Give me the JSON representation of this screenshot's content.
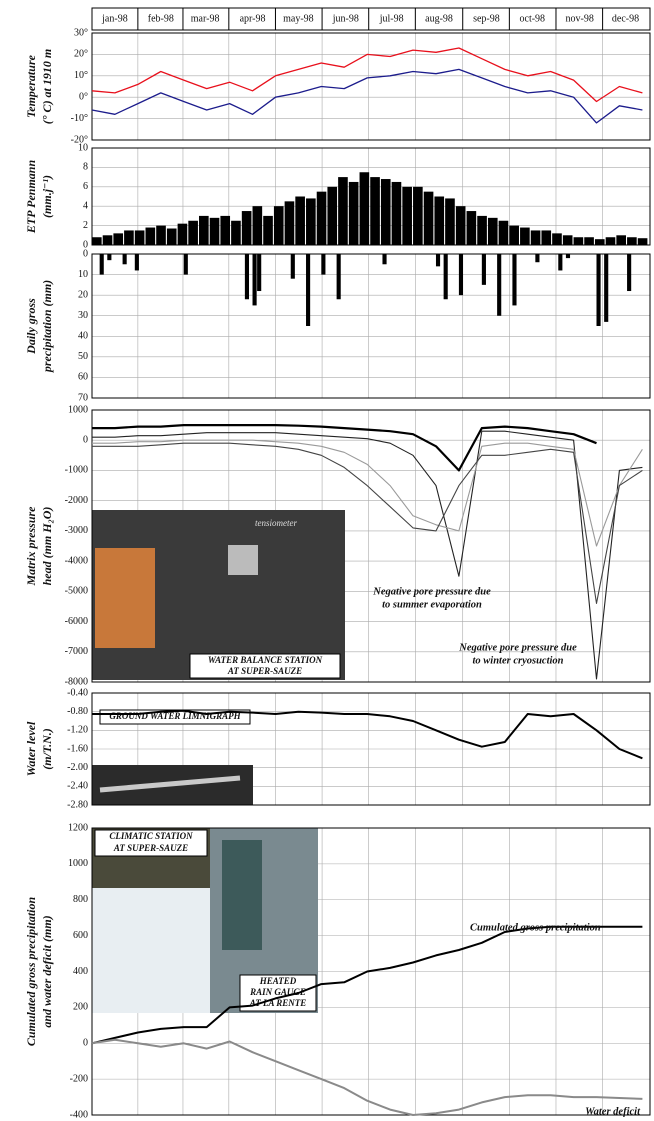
{
  "chart_data": [
    {
      "type": "line",
      "ylabel": [
        "Temperature",
        "(° C) at 1910 m"
      ],
      "xlim": [
        0,
        365
      ],
      "xticks": [
        {
          "value": 15,
          "label": "jan-98"
        },
        {
          "value": 45,
          "label": "feb-98"
        },
        {
          "value": 74,
          "label": "mar-98"
        },
        {
          "value": 105,
          "label": "apr-98"
        },
        {
          "value": 135,
          "label": "may-98"
        },
        {
          "value": 166,
          "label": "jun-98"
        },
        {
          "value": 196,
          "label": "jul-98"
        },
        {
          "value": 227,
          "label": "aug-98"
        },
        {
          "value": 258,
          "label": "sep-98"
        },
        {
          "value": 288,
          "label": "oct-98"
        },
        {
          "value": 319,
          "label": "nov-98"
        },
        {
          "value": 349,
          "label": "dec-98"
        }
      ],
      "ylim": [
        -20,
        30
      ],
      "yticks": [
        {
          "value": -20,
          "label": "-20°"
        },
        {
          "value": -10,
          "label": "-10°"
        },
        {
          "value": 0,
          "label": "0°"
        },
        {
          "value": 10,
          "label": "10°"
        },
        {
          "value": 20,
          "label": "20°"
        },
        {
          "value": 30,
          "label": "30°"
        }
      ],
      "grid": true,
      "x": [
        0,
        15,
        30,
        45,
        60,
        75,
        90,
        105,
        120,
        135,
        150,
        165,
        180,
        195,
        210,
        225,
        240,
        255,
        270,
        285,
        300,
        315,
        330,
        345,
        360
      ],
      "series": [
        {
          "color": "#e8101c",
          "values": [
            3,
            2,
            6,
            12,
            8,
            4,
            7,
            3,
            10,
            13,
            16,
            14,
            20,
            19,
            22,
            21,
            23,
            18,
            13,
            10,
            12,
            8,
            -2,
            5,
            2
          ]
        },
        {
          "color": "#1c1c8c",
          "values": [
            -6,
            -8,
            -3,
            2,
            -2,
            -6,
            -3,
            -8,
            0,
            2,
            5,
            4,
            9,
            10,
            12,
            11,
            13,
            9,
            5,
            2,
            3,
            0,
            -12,
            -4,
            -6
          ]
        }
      ]
    },
    {
      "type": "bar",
      "ylabel": [
        "ETP Penmann",
        "(mm.j⁻¹)"
      ],
      "xlim": [
        0,
        365
      ],
      "ylim": [
        0,
        10
      ],
      "yticks": [
        0,
        2,
        4,
        6,
        8,
        10
      ],
      "grid": true,
      "color": "#000000",
      "x": [
        0,
        7,
        14,
        21,
        28,
        35,
        42,
        49,
        56,
        63,
        70,
        77,
        84,
        91,
        98,
        105,
        112,
        119,
        126,
        133,
        140,
        147,
        154,
        161,
        168,
        175,
        182,
        189,
        196,
        203,
        210,
        217,
        224,
        231,
        238,
        245,
        252,
        259,
        266,
        273,
        280,
        287,
        294,
        301,
        308,
        315,
        322,
        329,
        336,
        343,
        350,
        357
      ],
      "values": [
        0.8,
        1,
        1.2,
        1.5,
        1.5,
        1.8,
        2,
        1.7,
        2.2,
        2.5,
        3,
        2.8,
        3,
        2.5,
        3.5,
        4,
        3,
        4,
        4.5,
        5,
        4.8,
        5.5,
        6,
        7,
        6.5,
        7.5,
        7,
        6.8,
        6.5,
        6,
        6,
        5.5,
        5,
        4.8,
        4,
        3.5,
        3,
        2.8,
        2.5,
        2,
        1.8,
        1.5,
        1.5,
        1.2,
        1,
        0.8,
        0.8,
        0.6,
        0.8,
        1,
        0.8,
        0.7
      ]
    },
    {
      "type": "bar",
      "ylabel": [
        "Daily gross",
        "precipitation (mm)"
      ],
      "xlim": [
        0,
        365
      ],
      "ylim": [
        0,
        70
      ],
      "y_inverted": true,
      "yticks": [
        0,
        10,
        20,
        30,
        40,
        50,
        60,
        70
      ],
      "grid": true,
      "color": "#000000",
      "x": [
        5,
        10,
        20,
        28,
        60,
        100,
        105,
        108,
        130,
        140,
        150,
        160,
        190,
        225,
        230,
        240,
        255,
        265,
        275,
        290,
        305,
        310,
        330,
        335,
        350
      ],
      "values": [
        10,
        3,
        5,
        8,
        10,
        22,
        25,
        18,
        12,
        35,
        10,
        22,
        5,
        6,
        22,
        20,
        15,
        30,
        25,
        4,
        8,
        2,
        35,
        33,
        18
      ]
    },
    {
      "type": "line",
      "ylabel": [
        "Matrix pressure",
        "head (mm H₂O)"
      ],
      "xlim": [
        0,
        365
      ],
      "ylim": [
        -8000,
        1000
      ],
      "yticks": [
        -8000,
        -7000,
        -6000,
        -5000,
        -4000,
        -3000,
        -2000,
        -1000,
        0,
        1000
      ],
      "grid": true,
      "x": [
        0,
        15,
        30,
        45,
        60,
        75,
        90,
        105,
        120,
        135,
        150,
        165,
        180,
        195,
        210,
        225,
        240,
        255,
        270,
        285,
        300,
        315,
        330,
        345,
        360
      ],
      "series": [
        {
          "color": "#000000",
          "width": 2.2,
          "values": [
            400,
            400,
            450,
            450,
            500,
            500,
            500,
            500,
            500,
            480,
            450,
            400,
            350,
            300,
            200,
            -200,
            -1000,
            400,
            450,
            400,
            300,
            200,
            -100,
            null,
            null
          ]
        },
        {
          "color": "#222222",
          "width": 1.1,
          "values": [
            100,
            100,
            150,
            150,
            200,
            250,
            250,
            250,
            250,
            200,
            150,
            100,
            50,
            -100,
            -500,
            -1500,
            -4500,
            300,
            300,
            200,
            100,
            0,
            -7900,
            -1000,
            -900
          ]
        },
        {
          "color": "#9a9a9a",
          "width": 1.1,
          "values": [
            -100,
            -100,
            -50,
            -50,
            0,
            0,
            0,
            0,
            -50,
            -100,
            -200,
            -400,
            -800,
            -1500,
            -2500,
            -2800,
            -3000,
            -200,
            -100,
            -100,
            -200,
            -300,
            -3500,
            -1500,
            -300
          ]
        },
        {
          "color": "#444444",
          "width": 1.1,
          "values": [
            -200,
            -200,
            -200,
            -150,
            -100,
            -100,
            -100,
            -150,
            -200,
            -300,
            -500,
            -900,
            -1500,
            -2200,
            -2900,
            -3000,
            -1500,
            -500,
            -500,
            -400,
            -300,
            -400,
            -5400,
            -1500,
            -1000
          ]
        }
      ],
      "annotations": [
        "Negative pore pressure due",
        "to summer evaporation",
        "Negative pore pressure due",
        "to winter cryosuction"
      ],
      "photo_captions": [
        "tensiometer",
        "WATER BALANCE STATION",
        "AT SUPER-SAUZE"
      ]
    },
    {
      "type": "line",
      "ylabel": [
        "Water level",
        "(m/T.N.)"
      ],
      "xlim": [
        0,
        365
      ],
      "ylim": [
        -2.8,
        -0.4
      ],
      "yticks": [
        {
          "value": -2.8,
          "label": "-2.80"
        },
        {
          "value": -2.4,
          "label": "-2.40"
        },
        {
          "value": -2,
          "label": "-2.00"
        },
        {
          "value": -1.6,
          "label": "-1.60"
        },
        {
          "value": -1.2,
          "label": "-1.20"
        },
        {
          "value": -0.8,
          "label": "-0.80"
        },
        {
          "value": -0.4,
          "label": "-0.40"
        }
      ],
      "grid": true,
      "x": [
        0,
        15,
        30,
        45,
        60,
        75,
        90,
        105,
        120,
        135,
        150,
        165,
        180,
        195,
        210,
        225,
        240,
        255,
        270,
        285,
        300,
        315,
        330,
        345,
        360
      ],
      "series": [
        {
          "color": "#000000",
          "width": 2,
          "values": [
            -0.85,
            -0.85,
            -0.85,
            -0.8,
            -0.78,
            -0.85,
            -0.8,
            -0.82,
            -0.85,
            -0.8,
            -0.82,
            -0.85,
            -0.85,
            -0.9,
            -1.0,
            -1.2,
            -1.4,
            -1.55,
            -1.45,
            -0.85,
            -0.9,
            -0.85,
            -1.2,
            -1.6,
            -1.8
          ]
        }
      ],
      "photo_captions": [
        "GROUND WATER LIMNIGRAPH"
      ]
    },
    {
      "type": "line",
      "ylabel": [
        "Cumulated gross precipitation",
        "and water deficit (mm)"
      ],
      "xlim": [
        0,
        365
      ],
      "ylim": [
        -400,
        1200
      ],
      "yticks": [
        -400,
        -200,
        0,
        200,
        400,
        600,
        800,
        1000,
        1200
      ],
      "grid": true,
      "x": [
        0,
        15,
        30,
        45,
        60,
        75,
        90,
        105,
        120,
        135,
        150,
        165,
        180,
        195,
        210,
        225,
        240,
        255,
        270,
        285,
        300,
        315,
        330,
        345,
        360
      ],
      "series": [
        {
          "name": "Cumulated gross precipitation",
          "color": "#000000",
          "width": 2,
          "values": [
            0,
            30,
            60,
            80,
            90,
            90,
            200,
            210,
            250,
            280,
            330,
            340,
            400,
            420,
            450,
            490,
            520,
            560,
            620,
            640,
            650,
            650,
            650,
            650,
            650
          ]
        },
        {
          "name": "Water deficit",
          "color": "#8a8a8a",
          "width": 2,
          "values": [
            0,
            20,
            0,
            -20,
            0,
            -30,
            10,
            -50,
            -100,
            -150,
            -200,
            -250,
            -320,
            -370,
            -400,
            -390,
            -370,
            -330,
            -300,
            -290,
            -290,
            -300,
            -300,
            -305,
            -310
          ]
        }
      ],
      "photo_captions": [
        "CLIMATIC STATION",
        "AT SUPER-SAUZE",
        "HEATED",
        "RAIN GAUGE",
        "AT LA RENTE"
      ]
    }
  ]
}
